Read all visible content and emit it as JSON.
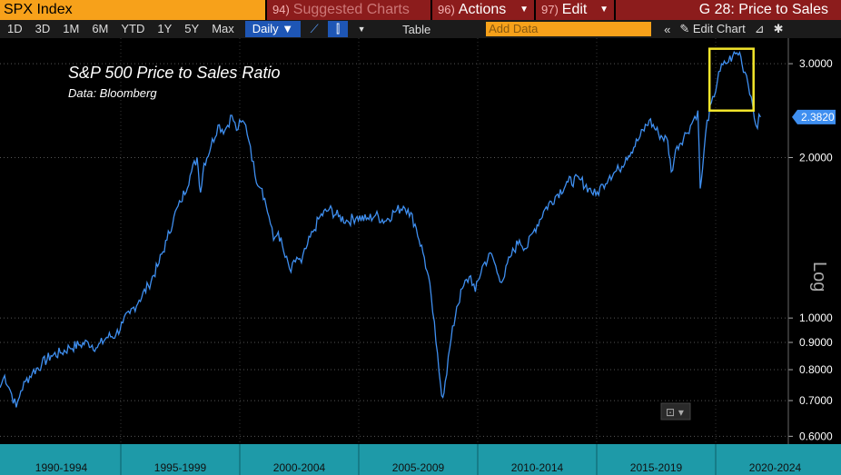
{
  "topbar": {
    "security": "SPX Index",
    "suggested_num": "94)",
    "suggested_label": "Suggested Charts",
    "actions_num": "96)",
    "actions_label": "Actions",
    "edit_num": "97)",
    "edit_label": "Edit",
    "page_title": "G 28: Price to Sales"
  },
  "toolbar": {
    "ranges": [
      "1D",
      "3D",
      "1M",
      "6M",
      "YTD",
      "1Y",
      "5Y",
      "Max"
    ],
    "frequency": "Daily",
    "table_label": "Table",
    "add_data_placeholder": "Add Data",
    "edit_chart_label": "Edit Chart"
  },
  "chart_data": {
    "type": "line",
    "title": "S&P 500 Price to Sales Ratio",
    "subtitle": "Data: Bloomberg",
    "ylabel": "Log",
    "yscale": "log",
    "ylim": [
      0.58,
      3.35
    ],
    "xlim": [
      1990.0,
      2024.0
    ],
    "y_ticks": [
      "3.0000",
      "2.0000",
      "1.0000",
      "0.9000",
      "0.8000",
      "0.7000",
      "0.6000"
    ],
    "x_ticks": [
      "1990-1994",
      "1995-1999",
      "2000-2004",
      "2005-2009",
      "2010-2014",
      "2015-2019",
      "2020-2024"
    ],
    "last_value": "2.3820",
    "highlight_box": {
      "x_range": [
        2020.6,
        2022.5
      ],
      "y_range": [
        2.45,
        3.2
      ]
    },
    "line_color": "#3f8ff0",
    "box_color": "#f2e52b",
    "series": [
      {
        "x": [
          1990.0,
          1990.2,
          1990.5,
          1990.7,
          1990.9,
          1991.1,
          1991.4,
          1991.8,
          1992.2,
          1992.6,
          1993.0,
          1993.4,
          1993.8,
          1994.2,
          1994.6,
          1995.0,
          1995.3,
          1995.6,
          1996.0,
          1996.4,
          1996.8,
          1997.2,
          1997.5,
          1997.8,
          1998.2,
          1998.5,
          1998.65,
          1998.8,
          1999.1,
          1999.4,
          1999.7,
          2000.0,
          2000.2,
          2000.4,
          2000.6,
          2000.8,
          2001.0,
          2001.3,
          2001.6,
          2001.8,
          2002.0,
          2002.3,
          2002.55,
          2002.8,
          2003.0,
          2003.2,
          2003.5,
          2003.8,
          2004.2,
          2004.6,
          2005.0,
          2005.4,
          2005.8,
          2006.2,
          2006.6,
          2007.0,
          2007.4,
          2007.6,
          2007.9,
          2008.3,
          2008.6,
          2008.8,
          2009.0,
          2009.1,
          2009.2,
          2009.4,
          2009.7,
          2010.0,
          2010.3,
          2010.5,
          2010.8,
          2011.2,
          2011.5,
          2011.7,
          2012.0,
          2012.4,
          2012.7,
          2013.0,
          2013.5,
          2014.0,
          2014.5,
          2015.0,
          2015.4,
          2015.7,
          2016.0,
          2016.3,
          2016.7,
          2017.0,
          2017.5,
          2018.0,
          2018.4,
          2018.8,
          2018.95,
          2019.2,
          2019.6,
          2019.9,
          2020.1,
          2020.2,
          2020.3,
          2020.5,
          2020.8,
          2021.0,
          2021.3,
          2021.6,
          2021.9,
          2022.0,
          2022.2,
          2022.4,
          2022.6,
          2022.8
        ],
        "y": [
          0.74,
          0.78,
          0.72,
          0.68,
          0.73,
          0.76,
          0.79,
          0.82,
          0.85,
          0.86,
          0.88,
          0.89,
          0.9,
          0.88,
          0.92,
          0.93,
          0.98,
          1.02,
          1.08,
          1.15,
          1.25,
          1.4,
          1.55,
          1.65,
          1.85,
          2.0,
          1.72,
          1.95,
          2.1,
          2.3,
          2.25,
          2.4,
          2.25,
          2.33,
          2.3,
          2.1,
          1.85,
          1.75,
          1.55,
          1.4,
          1.45,
          1.3,
          1.22,
          1.3,
          1.27,
          1.35,
          1.45,
          1.55,
          1.6,
          1.55,
          1.52,
          1.55,
          1.53,
          1.56,
          1.52,
          1.58,
          1.62,
          1.6,
          1.5,
          1.3,
          1.1,
          0.9,
          0.75,
          0.71,
          0.76,
          0.88,
          1.05,
          1.15,
          1.2,
          1.12,
          1.25,
          1.32,
          1.2,
          1.18,
          1.3,
          1.4,
          1.35,
          1.45,
          1.6,
          1.7,
          1.8,
          1.82,
          1.75,
          1.7,
          1.78,
          1.85,
          1.9,
          2.0,
          2.15,
          2.35,
          2.22,
          2.15,
          1.88,
          2.1,
          2.22,
          2.35,
          2.45,
          1.75,
          1.9,
          2.35,
          2.6,
          2.9,
          3.0,
          3.1,
          3.15,
          3.0,
          2.85,
          2.6,
          2.3,
          2.382
        ]
      }
    ]
  }
}
